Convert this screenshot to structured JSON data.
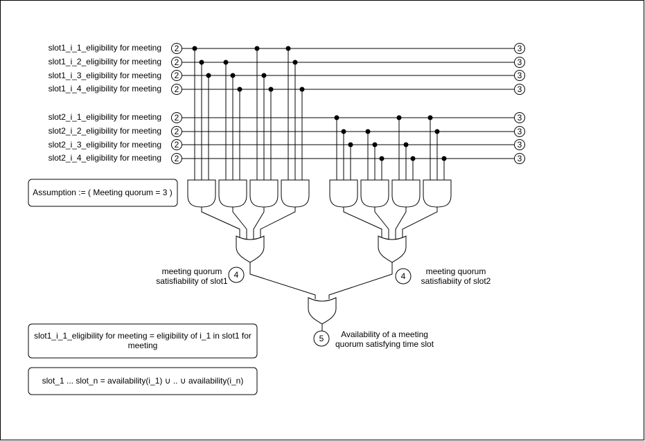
{
  "slot1_inputs": [
    {
      "label": "slot1_i_1_eligibility for meeting",
      "badge_left": "2",
      "badge_right": "3"
    },
    {
      "label": "slot1_i_2_eligibility for meeting",
      "badge_left": "2",
      "badge_right": "3"
    },
    {
      "label": "slot1_i_3_eligibility for meeting",
      "badge_left": "2",
      "badge_right": "3"
    },
    {
      "label": "slot1_i_4_eligibility for meeting",
      "badge_left": "2",
      "badge_right": "3"
    }
  ],
  "slot2_inputs": [
    {
      "label": "slot2_i_1_eligibility for meeting",
      "badge_left": "2",
      "badge_right": "3"
    },
    {
      "label": "slot2_i_2_eligibility for meeting",
      "badge_left": "2",
      "badge_right": "3"
    },
    {
      "label": "slot2_i_3_eligibility for meeting",
      "badge_left": "2",
      "badge_right": "3"
    },
    {
      "label": "slot2_i_4_eligibility for meeting",
      "badge_left": "2",
      "badge_right": "3"
    }
  ],
  "assumption": "Assumption := ( Meeting quorum = 3 )",
  "slot1_output": {
    "badge": "4",
    "label_line1": "meeting quorum",
    "label_line2": "satisfiability of slot1"
  },
  "slot2_output": {
    "badge": "4",
    "label_line1": "meeting quorum",
    "label_line2": "satisfiabiity of slot2"
  },
  "final_output": {
    "badge": "5",
    "label_line1": "Availability of a meeting",
    "label_line2": "quorum satisfying time slot"
  },
  "note1": {
    "line1": "slot1_i_1_eligibility for meeting = eligibility of i_1 in slot1 for",
    "line2": "meeting"
  },
  "note2": "slot_1 ... slot_n = availability(i_1) ∪ .. ∪ availability(i_n)"
}
